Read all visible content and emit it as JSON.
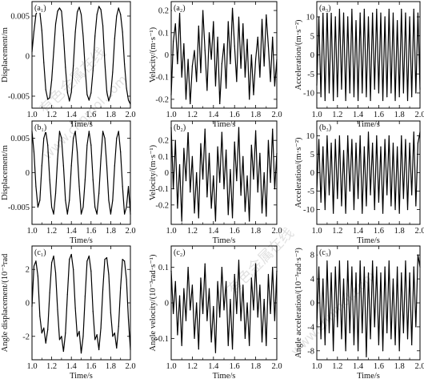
{
  "watermark_texts": [
    "有色金属在线",
    "www.cnnmol.com"
  ],
  "chart_data": [
    {
      "id": "a1",
      "type": "line",
      "panel_label": "(a₁)",
      "xlabel": "Time/s",
      "ylabel": "Displacement/m",
      "xlim": [
        1.0,
        2.0
      ],
      "ylim": [
        -0.0065,
        0.0068
      ],
      "xticks": [
        1.0,
        1.2,
        1.4,
        1.6,
        1.8,
        2.0
      ],
      "xtick_labels": [
        "1.0",
        "1.2",
        "1.4",
        "1.6",
        "1.8",
        "2.0"
      ],
      "yticks": [
        -0.005,
        0,
        0.005
      ],
      "ytick_labels": [
        "-0.005",
        "0",
        "0.005"
      ],
      "x": [
        1.0,
        1.02,
        1.04,
        1.06,
        1.08,
        1.1,
        1.12,
        1.14,
        1.16,
        1.18,
        1.2,
        1.22,
        1.24,
        1.26,
        1.28,
        1.3,
        1.32,
        1.34,
        1.36,
        1.38,
        1.4,
        1.42,
        1.44,
        1.46,
        1.48,
        1.5,
        1.52,
        1.54,
        1.56,
        1.58,
        1.6,
        1.62,
        1.64,
        1.66,
        1.68,
        1.7,
        1.72,
        1.74,
        1.76,
        1.78,
        1.8,
        1.82,
        1.84,
        1.86,
        1.88,
        1.9,
        1.92,
        1.94,
        1.96,
        1.98,
        2.0
      ],
      "values": [
        0.0005,
        0.0031,
        0.0052,
        0.0058,
        0.0055,
        0.0032,
        -0.0008,
        -0.0042,
        -0.0054,
        -0.0052,
        -0.003,
        0.0005,
        0.004,
        0.0056,
        0.006,
        0.0056,
        0.0026,
        -0.0014,
        -0.0045,
        -0.0056,
        -0.0045,
        -0.0012,
        0.003,
        0.0055,
        0.0061,
        0.0052,
        0.0025,
        -0.0015,
        -0.0048,
        -0.0055,
        -0.0046,
        -0.0018,
        0.0025,
        0.0052,
        0.0062,
        0.0058,
        0.0038,
        -0.0008,
        -0.0044,
        -0.0056,
        -0.0048,
        -0.002,
        0.0022,
        0.005,
        0.006,
        0.0052,
        0.003,
        -0.001,
        -0.004,
        -0.0055,
        -0.006
      ]
    },
    {
      "id": "a2",
      "type": "line",
      "panel_label": "(a₂)",
      "xlabel": "Time/s",
      "ylabel": "Velocity/(m·s⁻¹)",
      "xlim": [
        1.0,
        2.0
      ],
      "ylim": [
        -0.24,
        0.24
      ],
      "xticks": [
        1.0,
        1.2,
        1.4,
        1.6,
        1.8,
        2.0
      ],
      "xtick_labels": [
        "1.0",
        "1.2",
        "1.4",
        "1.6",
        "1.8",
        "2.0"
      ],
      "yticks": [
        -0.2,
        -0.1,
        0,
        0.1,
        0.2
      ],
      "ytick_labels": [
        "-0.2",
        "-0.1",
        "0",
        "0.1",
        "0.2"
      ],
      "x": [
        1.0,
        1.02,
        1.04,
        1.06,
        1.08,
        1.1,
        1.12,
        1.14,
        1.16,
        1.18,
        1.2,
        1.22,
        1.24,
        1.26,
        1.28,
        1.3,
        1.32,
        1.34,
        1.36,
        1.38,
        1.4,
        1.42,
        1.44,
        1.46,
        1.48,
        1.5,
        1.52,
        1.54,
        1.56,
        1.58,
        1.6,
        1.62,
        1.64,
        1.66,
        1.68,
        1.7,
        1.72,
        1.74,
        1.76,
        1.78,
        1.8,
        1.82,
        1.84,
        1.86,
        1.88,
        1.9,
        1.92,
        1.94,
        1.96,
        1.98,
        2.0
      ],
      "values": [
        -0.18,
        0.06,
        0.14,
        -0.04,
        0.19,
        -0.1,
        0.05,
        -0.2,
        -0.02,
        -0.22,
        -0.05,
        0.02,
        -0.12,
        0.13,
        -0.08,
        0.2,
        0.02,
        -0.16,
        0.1,
        -0.02,
        0.15,
        -0.14,
        0.08,
        -0.22,
        -0.04,
        0.05,
        -0.15,
        0.15,
        -0.04,
        0.21,
        0.04,
        -0.12,
        0.17,
        -0.06,
        0.14,
        -0.1,
        0.07,
        -0.2,
        0.0,
        -0.18,
        -0.02,
        0.08,
        -0.1,
        0.16,
        -0.05,
        0.18,
        0.04,
        -0.12,
        0.08,
        -0.14,
        -0.02
      ]
    },
    {
      "id": "a3",
      "type": "line",
      "panel_label": "(a₃)",
      "xlabel": "Time/s",
      "ylabel": "Acceleration/(m·s⁻²)",
      "xlim": [
        1.0,
        2.0
      ],
      "ylim": [
        -14,
        14
      ],
      "xticks": [
        1.0,
        1.2,
        1.4,
        1.6,
        1.8,
        2.0
      ],
      "xtick_labels": [
        "1.0",
        "1.2",
        "1.4",
        "1.6",
        "1.8",
        "2.0"
      ],
      "yticks": [
        -10,
        -5,
        0,
        5,
        10
      ],
      "ytick_labels": [
        "-10",
        "-5",
        "0",
        "5",
        "10"
      ],
      "x": [
        1.0,
        1.02,
        1.04,
        1.06,
        1.08,
        1.1,
        1.12,
        1.14,
        1.16,
        1.18,
        1.2,
        1.22,
        1.24,
        1.26,
        1.28,
        1.3,
        1.32,
        1.34,
        1.36,
        1.38,
        1.4,
        1.42,
        1.44,
        1.46,
        1.48,
        1.5,
        1.52,
        1.54,
        1.56,
        1.58,
        1.6,
        1.62,
        1.64,
        1.66,
        1.68,
        1.7,
        1.72,
        1.74,
        1.76,
        1.78,
        1.8,
        1.82,
        1.84,
        1.86,
        1.88,
        1.9,
        1.92,
        1.94,
        1.96,
        1.98,
        2.0
      ],
      "values": [
        -8,
        10,
        -11,
        11,
        -12,
        12,
        -10,
        11,
        -12,
        10,
        -11,
        12,
        -9,
        11,
        -12,
        10,
        -10,
        12,
        -11,
        9,
        -12,
        11,
        -10,
        12,
        -11,
        10,
        -12,
        11,
        -9,
        12,
        -10,
        11,
        -12,
        10,
        -11,
        12,
        -10,
        11,
        -12,
        9,
        -11,
        12,
        -10,
        11,
        -12,
        10,
        -11,
        12,
        -10,
        11,
        -9
      ]
    },
    {
      "id": "b1",
      "type": "line",
      "panel_label": "(b₁)",
      "xlabel": "Time/s",
      "ylabel": "Displacement/m",
      "xlim": [
        1.0,
        2.0
      ],
      "ylim": [
        -0.0075,
        0.0075
      ],
      "xticks": [
        1.0,
        1.2,
        1.4,
        1.6,
        1.8,
        2.0
      ],
      "xtick_labels": [
        "1.0",
        "1.2",
        "1.4",
        "1.6",
        "1.8",
        "2.0"
      ],
      "yticks": [
        -0.005,
        0,
        0.005
      ],
      "ytick_labels": [
        "-0.005",
        "0",
        "0.005"
      ],
      "x": [
        1.0,
        1.02,
        1.04,
        1.06,
        1.08,
        1.1,
        1.12,
        1.14,
        1.16,
        1.18,
        1.2,
        1.22,
        1.24,
        1.26,
        1.28,
        1.3,
        1.32,
        1.34,
        1.36,
        1.38,
        1.4,
        1.42,
        1.44,
        1.46,
        1.48,
        1.5,
        1.52,
        1.54,
        1.56,
        1.58,
        1.6,
        1.62,
        1.64,
        1.66,
        1.68,
        1.7,
        1.72,
        1.74,
        1.76,
        1.78,
        1.8,
        1.82,
        1.84,
        1.86,
        1.88,
        1.9,
        1.92,
        1.94,
        1.96,
        1.98,
        2.0
      ],
      "values": [
        0.006,
        0.003,
        -0.002,
        -0.005,
        -0.004,
        0.001,
        0.005,
        0.006,
        0.004,
        -0.001,
        -0.005,
        -0.006,
        -0.003,
        0.002,
        0.006,
        0.005,
        0.001,
        -0.004,
        -0.006,
        -0.004,
        0.001,
        0.005,
        0.006,
        0.003,
        -0.002,
        -0.006,
        -0.005,
        -0.001,
        0.004,
        0.006,
        0.004,
        -0.001,
        -0.005,
        -0.006,
        -0.003,
        0.002,
        0.006,
        0.005,
        0.001,
        -0.004,
        -0.006,
        -0.004,
        0.001,
        0.005,
        0.006,
        0.003,
        -0.002,
        -0.006,
        -0.005,
        -0.002,
        -0.006
      ]
    },
    {
      "id": "b2",
      "type": "line",
      "panel_label": "(b₂)",
      "xlabel": "Time/s",
      "ylabel": "Velocity/(m·s⁻¹)",
      "xlim": [
        1.0,
        2.0
      ],
      "ylim": [
        -0.32,
        0.32
      ],
      "xticks": [
        1.0,
        1.2,
        1.4,
        1.6,
        1.8,
        2.0
      ],
      "xtick_labels": [
        "1.0",
        "1.2",
        "1.4",
        "1.6",
        "1.8",
        "2.0"
      ],
      "yticks": [
        -0.2,
        -0.1,
        0,
        0.1,
        0.2
      ],
      "ytick_labels": [
        "-0.2",
        "-0.1",
        "0",
        "0.1",
        "0.2"
      ],
      "x": [
        1.0,
        1.02,
        1.04,
        1.06,
        1.08,
        1.1,
        1.12,
        1.14,
        1.16,
        1.18,
        1.2,
        1.22,
        1.24,
        1.26,
        1.28,
        1.3,
        1.32,
        1.34,
        1.36,
        1.38,
        1.4,
        1.42,
        1.44,
        1.46,
        1.48,
        1.5,
        1.52,
        1.54,
        1.56,
        1.58,
        1.6,
        1.62,
        1.64,
        1.66,
        1.68,
        1.7,
        1.72,
        1.74,
        1.76,
        1.78,
        1.8,
        1.82,
        1.84,
        1.86,
        1.88,
        1.9,
        1.92,
        1.94,
        1.96,
        1.98,
        2.0
      ],
      "values": [
        0.28,
        -0.1,
        0.2,
        -0.22,
        0.05,
        -0.3,
        0.15,
        -0.05,
        0.26,
        -0.12,
        0.1,
        -0.25,
        0.0,
        -0.28,
        0.18,
        -0.04,
        0.27,
        -0.15,
        0.12,
        -0.22,
        -0.02,
        -0.3,
        0.16,
        -0.06,
        0.25,
        -0.1,
        0.14,
        -0.26,
        0.02,
        -0.28,
        0.19,
        -0.05,
        0.28,
        -0.14,
        0.1,
        -0.24,
        -0.02,
        -0.3,
        0.17,
        -0.04,
        0.26,
        -0.12,
        0.12,
        -0.25,
        0.0,
        -0.27,
        0.2,
        -0.06,
        0.27,
        -0.1,
        0.12
      ]
    },
    {
      "id": "b3",
      "type": "line",
      "panel_label": "(b₃)",
      "xlabel": "Time/s",
      "ylabel": "Acceleration/(m·s⁻²)",
      "xlim": [
        1.0,
        2.0
      ],
      "ylim": [
        -14,
        14
      ],
      "xticks": [
        1.0,
        1.2,
        1.4,
        1.6,
        1.8,
        2.0
      ],
      "xtick_labels": [
        "1.0",
        "1.2",
        "1.4",
        "1.6",
        "1.8",
        "2.0"
      ],
      "yticks": [
        -10,
        -5,
        0,
        5,
        10
      ],
      "ytick_labels": [
        "-10",
        "-5",
        "0",
        "5",
        "10"
      ],
      "x": [
        1.0,
        1.02,
        1.04,
        1.06,
        1.08,
        1.1,
        1.12,
        1.14,
        1.16,
        1.18,
        1.2,
        1.22,
        1.24,
        1.26,
        1.28,
        1.3,
        1.32,
        1.34,
        1.36,
        1.38,
        1.4,
        1.42,
        1.44,
        1.46,
        1.48,
        1.5,
        1.52,
        1.54,
        1.56,
        1.58,
        1.6,
        1.62,
        1.64,
        1.66,
        1.68,
        1.7,
        1.72,
        1.74,
        1.76,
        1.78,
        1.8,
        1.82,
        1.84,
        1.86,
        1.88,
        1.9,
        1.92,
        1.94,
        1.96,
        1.98,
        2.0
      ],
      "values": [
        -5,
        9,
        -8,
        7,
        -10,
        10,
        -6,
        8,
        -11,
        9,
        -7,
        10,
        -9,
        6,
        -11,
        10,
        -5,
        9,
        -10,
        8,
        -7,
        10,
        -11,
        7,
        -9,
        11,
        -6,
        8,
        -10,
        10,
        -8,
        7,
        -11,
        9,
        -6,
        10,
        -9,
        8,
        -10,
        7,
        -11,
        10,
        -7,
        9,
        -10,
        8,
        -6,
        11,
        -9,
        8,
        11
      ]
    },
    {
      "id": "c1",
      "type": "line",
      "panel_label": "(c₁)",
      "xlabel": "Time/s",
      "ylabel": "Angle displacement/(10⁻³rad",
      "xlim": [
        1.0,
        2.0
      ],
      "ylim": [
        -3.4,
        3.4
      ],
      "xticks": [
        1.0,
        1.2,
        1.4,
        1.6,
        1.8,
        2.0
      ],
      "xtick_labels": [
        "1.0",
        "1.2",
        "1.4",
        "1.6",
        "1.8",
        "2.0"
      ],
      "yticks": [
        -2,
        0,
        2
      ],
      "ytick_labels": [
        "-2",
        "0",
        "2"
      ],
      "x": [
        1.0,
        1.02,
        1.04,
        1.06,
        1.08,
        1.1,
        1.12,
        1.14,
        1.16,
        1.18,
        1.2,
        1.22,
        1.24,
        1.26,
        1.28,
        1.3,
        1.32,
        1.34,
        1.36,
        1.38,
        1.4,
        1.42,
        1.44,
        1.46,
        1.48,
        1.5,
        1.52,
        1.54,
        1.56,
        1.58,
        1.6,
        1.62,
        1.64,
        1.66,
        1.68,
        1.7,
        1.72,
        1.74,
        1.76,
        1.78,
        1.8,
        1.82,
        1.84,
        1.86,
        1.88,
        1.9,
        1.92,
        1.94,
        1.96,
        1.98,
        2.0
      ],
      "values": [
        -0.2,
        2.2,
        2.5,
        1.6,
        -0.8,
        -1.8,
        -1.5,
        -2.4,
        -1.6,
        0.6,
        2.4,
        2.8,
        1.8,
        -0.4,
        -2.2,
        -2.0,
        -2.9,
        -1.8,
        0.5,
        2.6,
        2.9,
        2.0,
        -0.3,
        -2.0,
        -1.7,
        -3.0,
        -2.0,
        0.4,
        2.5,
        2.8,
        1.9,
        -0.5,
        -2.2,
        -1.9,
        -2.8,
        -1.5,
        0.8,
        2.6,
        2.7,
        1.7,
        -0.6,
        -2.0,
        -1.8,
        -2.7,
        -1.4,
        0.9,
        2.6,
        2.5,
        1.4,
        -1.0,
        -2.8
      ]
    },
    {
      "id": "c2",
      "type": "line",
      "panel_label": "(c₂)",
      "xlabel": "Time/s",
      "ylabel": "Angle velocity/(10⁻³rad·s⁻¹)",
      "xlim": [
        1.0,
        2.0
      ],
      "ylim": [
        -0.16,
        0.16
      ],
      "xticks": [
        1.0,
        1.2,
        1.4,
        1.6,
        1.8,
        2.0
      ],
      "xtick_labels": [
        "1.0",
        "1.2",
        "1.4",
        "1.6",
        "1.8",
        "2.0"
      ],
      "yticks": [
        -0.1,
        0,
        0.1
      ],
      "ytick_labels": [
        "-0.1",
        "0",
        "0.1"
      ],
      "x": [
        1.0,
        1.02,
        1.04,
        1.06,
        1.08,
        1.1,
        1.12,
        1.14,
        1.16,
        1.18,
        1.2,
        1.22,
        1.24,
        1.26,
        1.28,
        1.3,
        1.32,
        1.34,
        1.36,
        1.38,
        1.4,
        1.42,
        1.44,
        1.46,
        1.48,
        1.5,
        1.52,
        1.54,
        1.56,
        1.58,
        1.6,
        1.62,
        1.64,
        1.66,
        1.68,
        1.7,
        1.72,
        1.74,
        1.76,
        1.78,
        1.8,
        1.82,
        1.84,
        1.86,
        1.88,
        1.9,
        1.92,
        1.94,
        1.96,
        1.98,
        2.0
      ],
      "values": [
        0.09,
        -0.03,
        0.06,
        -0.09,
        0.02,
        -0.12,
        0.04,
        -0.05,
        0.1,
        -0.02,
        0.05,
        -0.1,
        0.0,
        -0.13,
        0.07,
        -0.03,
        0.11,
        -0.05,
        0.04,
        -0.11,
        -0.01,
        -0.14,
        0.06,
        -0.04,
        0.1,
        -0.02,
        0.06,
        -0.12,
        0.01,
        -0.13,
        0.08,
        -0.03,
        0.12,
        -0.05,
        0.05,
        -0.1,
        0.0,
        -0.12,
        0.07,
        -0.02,
        0.11,
        -0.04,
        0.05,
        -0.11,
        0.01,
        -0.12,
        0.08,
        -0.03,
        0.1,
        -0.05,
        0.09
      ]
    },
    {
      "id": "c3",
      "type": "line",
      "panel_label": "(c₃)",
      "xlabel": "Time/s",
      "ylabel": "Angle acceleration/(10⁻³rad·s⁻²)",
      "xlim": [
        1.0,
        2.0
      ],
      "ylim": [
        -9.5,
        9.5
      ],
      "xticks": [
        1.0,
        1.2,
        1.4,
        1.6,
        1.8,
        2.0
      ],
      "xtick_labels": [
        "1.0",
        "1.2",
        "1.4",
        "1.6",
        "1.8",
        "2.0"
      ],
      "yticks": [
        -8,
        -4,
        0,
        4,
        8
      ],
      "ytick_labels": [
        "-8",
        "-4",
        "0",
        "4",
        "8"
      ],
      "x": [
        1.0,
        1.02,
        1.04,
        1.06,
        1.08,
        1.1,
        1.12,
        1.14,
        1.16,
        1.18,
        1.2,
        1.22,
        1.24,
        1.26,
        1.28,
        1.3,
        1.32,
        1.34,
        1.36,
        1.38,
        1.4,
        1.42,
        1.44,
        1.46,
        1.48,
        1.5,
        1.52,
        1.54,
        1.56,
        1.58,
        1.6,
        1.62,
        1.64,
        1.66,
        1.68,
        1.7,
        1.72,
        1.74,
        1.76,
        1.78,
        1.8,
        1.82,
        1.84,
        1.86,
        1.88,
        1.9,
        1.92,
        1.94,
        1.96,
        1.98,
        2.0
      ],
      "values": [
        -4,
        6,
        -6,
        4,
        -7,
        7,
        -5,
        5,
        -8,
        6,
        -4,
        7,
        -6,
        4,
        -8,
        7,
        -5,
        6,
        -7,
        5,
        -8,
        7,
        -5,
        6,
        -9,
        5,
        -6,
        7,
        -4,
        6,
        -7,
        5,
        -8,
        6,
        -5,
        7,
        -6,
        4,
        -7,
        6,
        -8,
        5,
        -5,
        7,
        -6,
        5,
        -7,
        6,
        -4,
        8,
        6
      ]
    }
  ]
}
